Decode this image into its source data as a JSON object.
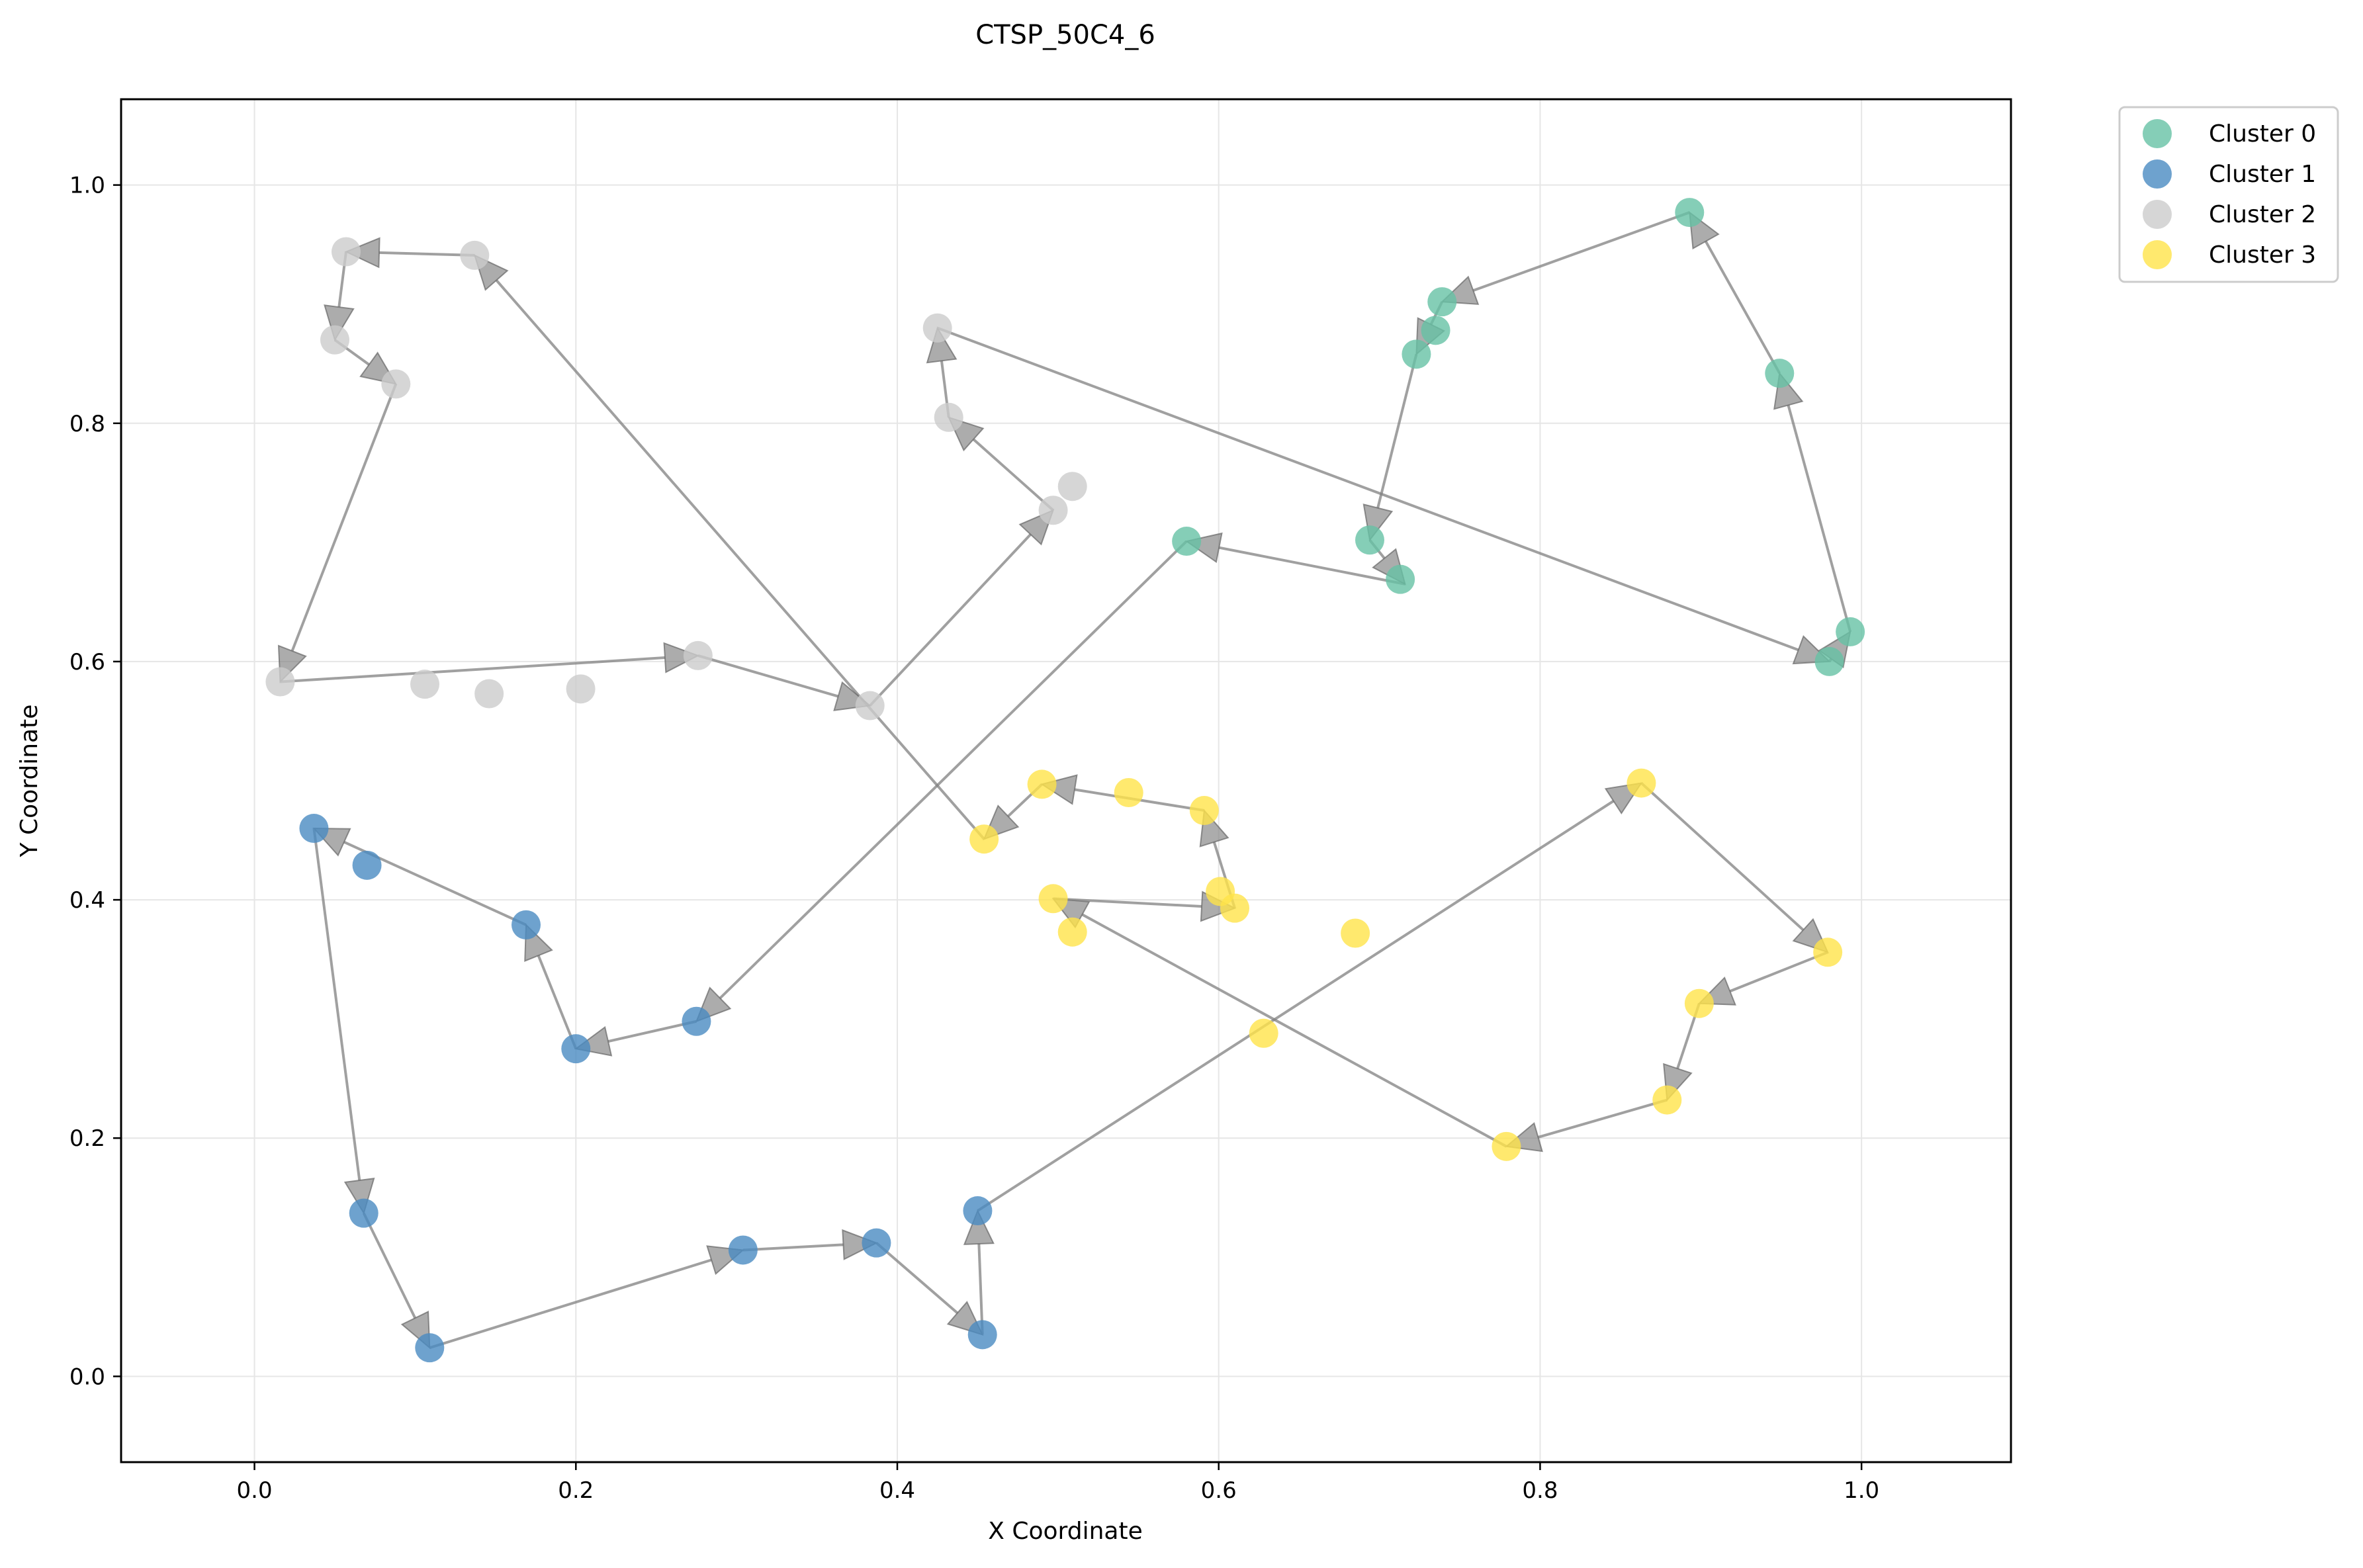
{
  "chart_data": {
    "type": "scatter",
    "title": "CTSP_50C4_6",
    "xlabel": "X Coordinate",
    "ylabel": "Y Coordinate",
    "xlim": [
      -0.083,
      1.093
    ],
    "ylim": [
      -0.072,
      1.072
    ],
    "xticks": [
      0.0,
      0.2,
      0.4,
      0.6,
      0.8,
      1.0
    ],
    "xtick_labels": [
      "0.0",
      "0.2",
      "0.4",
      "0.6",
      "0.8",
      "1.0"
    ],
    "yticks": [
      0.0,
      0.2,
      0.4,
      0.6,
      0.8,
      1.0
    ],
    "ytick_labels": [
      "0.0",
      "0.2",
      "0.4",
      "0.6",
      "0.8",
      "1.0"
    ],
    "grid": true,
    "legend_position": "outside-top-right",
    "route_color": "#808080",
    "series": [
      {
        "name": "Cluster 0",
        "color": "#66c2a5",
        "points": [
          [
            0.58,
            0.701
          ],
          [
            0.694,
            0.702
          ],
          [
            0.713,
            0.669
          ],
          [
            0.723,
            0.858
          ],
          [
            0.735,
            0.878
          ],
          [
            0.739,
            0.902
          ],
          [
            0.893,
            0.977
          ],
          [
            0.949,
            0.842
          ],
          [
            0.98,
            0.6
          ],
          [
            0.993,
            0.625
          ]
        ]
      },
      {
        "name": "Cluster 1",
        "color": "#4a8bc2",
        "points": [
          [
            0.037,
            0.46
          ],
          [
            0.07,
            0.429
          ],
          [
            0.169,
            0.379
          ],
          [
            0.2,
            0.275
          ],
          [
            0.275,
            0.298
          ],
          [
            0.068,
            0.137
          ],
          [
            0.109,
            0.024
          ],
          [
            0.304,
            0.106
          ],
          [
            0.387,
            0.112
          ],
          [
            0.45,
            0.139
          ],
          [
            0.453,
            0.035
          ]
        ]
      },
      {
        "name": "Cluster 2",
        "color": "#cccccc",
        "points": [
          [
            0.016,
            0.583
          ],
          [
            0.106,
            0.581
          ],
          [
            0.146,
            0.573
          ],
          [
            0.203,
            0.577
          ],
          [
            0.276,
            0.605
          ],
          [
            0.383,
            0.563
          ],
          [
            0.497,
            0.727
          ],
          [
            0.509,
            0.747
          ],
          [
            0.425,
            0.88
          ],
          [
            0.432,
            0.805
          ],
          [
            0.088,
            0.833
          ],
          [
            0.05,
            0.87
          ],
          [
            0.057,
            0.944
          ],
          [
            0.137,
            0.941
          ]
        ]
      },
      {
        "name": "Cluster 3",
        "color": "#ffe44a",
        "points": [
          [
            0.454,
            0.451
          ],
          [
            0.49,
            0.497
          ],
          [
            0.544,
            0.49
          ],
          [
            0.591,
            0.475
          ],
          [
            0.601,
            0.407
          ],
          [
            0.61,
            0.393
          ],
          [
            0.497,
            0.401
          ],
          [
            0.509,
            0.373
          ],
          [
            0.628,
            0.288
          ],
          [
            0.685,
            0.372
          ],
          [
            0.779,
            0.193
          ],
          [
            0.879,
            0.232
          ],
          [
            0.899,
            0.313
          ],
          [
            0.979,
            0.356
          ],
          [
            0.863,
            0.498
          ]
        ]
      }
    ],
    "route": [
      [
        0.716,
        0.665
      ],
      [
        0.58,
        0.701
      ],
      [
        0.275,
        0.298
      ],
      [
        0.2,
        0.275
      ],
      [
        0.169,
        0.379
      ],
      [
        0.037,
        0.46
      ],
      [
        0.068,
        0.137
      ],
      [
        0.109,
        0.024
      ],
      [
        0.304,
        0.106
      ],
      [
        0.387,
        0.112
      ],
      [
        0.453,
        0.035
      ],
      [
        0.45,
        0.139
      ],
      [
        0.863,
        0.498
      ],
      [
        0.979,
        0.356
      ],
      [
        0.899,
        0.313
      ],
      [
        0.879,
        0.232
      ],
      [
        0.779,
        0.193
      ],
      [
        0.497,
        0.401
      ],
      [
        0.61,
        0.393
      ],
      [
        0.591,
        0.475
      ],
      [
        0.49,
        0.497
      ],
      [
        0.454,
        0.451
      ],
      [
        0.137,
        0.941
      ],
      [
        0.057,
        0.944
      ],
      [
        0.05,
        0.87
      ],
      [
        0.088,
        0.833
      ],
      [
        0.016,
        0.583
      ],
      [
        0.276,
        0.605
      ],
      [
        0.383,
        0.563
      ],
      [
        0.497,
        0.727
      ],
      [
        0.432,
        0.805
      ],
      [
        0.425,
        0.88
      ],
      [
        0.98,
        0.6
      ],
      [
        0.993,
        0.625
      ],
      [
        0.949,
        0.842
      ],
      [
        0.893,
        0.977
      ],
      [
        0.739,
        0.902
      ],
      [
        0.723,
        0.858
      ],
      [
        0.694,
        0.702
      ],
      [
        0.716,
        0.665
      ]
    ]
  }
}
